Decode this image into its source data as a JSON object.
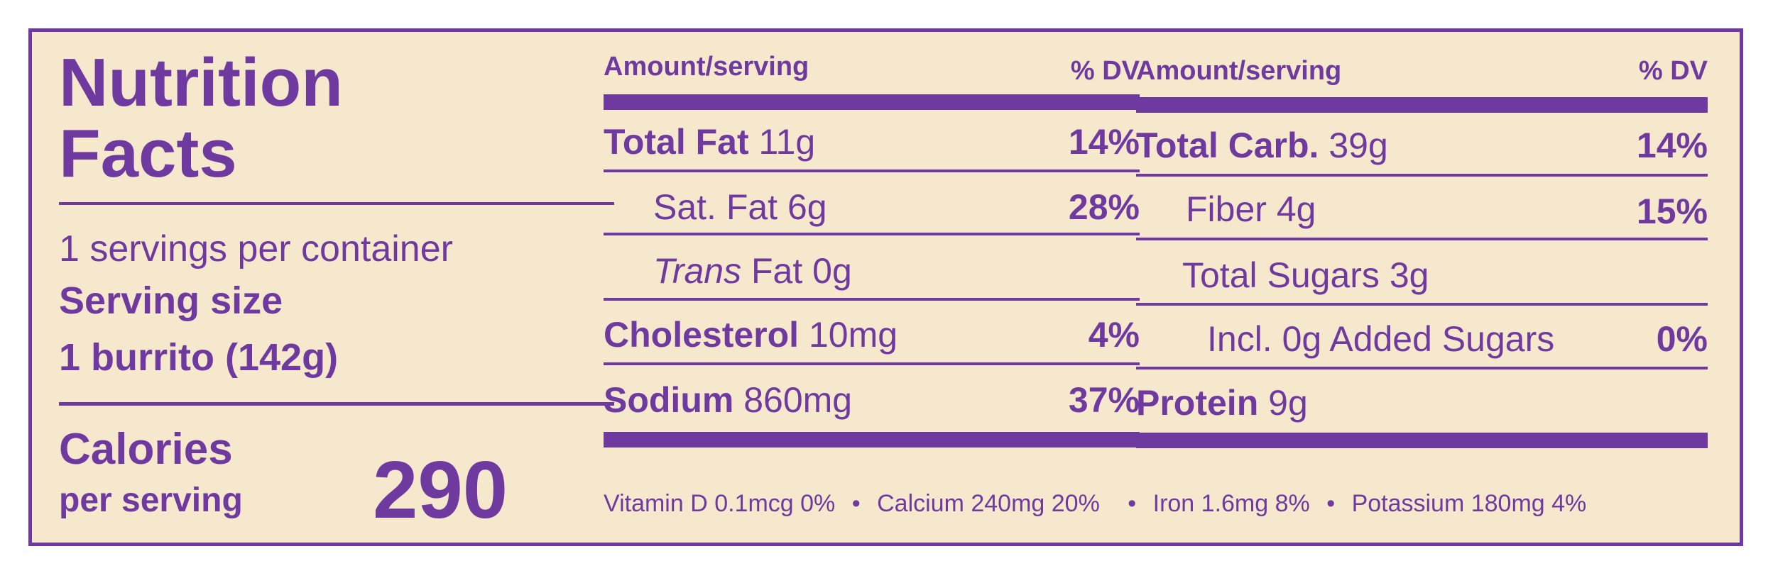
{
  "colors": {
    "accent": "#6e3aa0",
    "background": "#f6e8cc"
  },
  "title_line1": "Nutrition",
  "title_line2": "Facts",
  "servings_per_container": "1 servings per container",
  "serving_size_label": "Serving size",
  "serving_size_value": "1 burrito (142g)",
  "calories_label_line1": "Calories",
  "calories_label_line2": "per serving",
  "calories_value": "290",
  "left_header": {
    "amount": "Amount/serving",
    "dv": "% DV"
  },
  "right_header": {
    "amount": "Amount/serving",
    "dv": "% DV"
  },
  "left_rows": [
    {
      "name": "Total Fat",
      "amount": "11g",
      "dv": "14%"
    },
    {
      "name": "Sat. Fat",
      "amount": "6g",
      "dv": "28%"
    },
    {
      "name_italic": "Trans",
      "name": "Fat",
      "amount": "0g",
      "dv": ""
    },
    {
      "name": "Cholesterol",
      "amount": "10mg",
      "dv": "4%"
    },
    {
      "name": "Sodium",
      "amount": "860mg",
      "dv": "37%"
    }
  ],
  "right_rows": [
    {
      "name": "Total Carb.",
      "amount": "39g",
      "dv": "14%"
    },
    {
      "name": "Fiber",
      "amount": "4g",
      "dv": "15%"
    },
    {
      "name": "Total Sugars",
      "amount": "3g",
      "dv": ""
    },
    {
      "name": "Incl. 0g Added Sugars",
      "amount": "",
      "dv": "0%"
    },
    {
      "name": "Protein",
      "amount": "9g",
      "dv": ""
    }
  ],
  "vitamins": [
    "Vitamin D 0.1mcg 0%",
    "Calcium 240mg 20%",
    "Iron 1.6mg 8%",
    "Potassium 180mg 4%"
  ],
  "bullet": "•"
}
